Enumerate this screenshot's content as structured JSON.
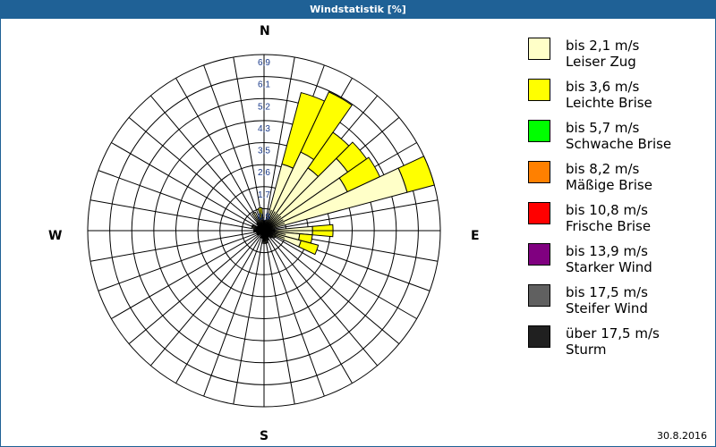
{
  "window": {
    "title": "Windstatistik [%]"
  },
  "compass": {
    "n": "N",
    "e": "E",
    "s": "S",
    "w": "W"
  },
  "date": "30.8.2016",
  "legend": [
    {
      "speed": "bis 2,1 m/s",
      "name": "Leiser Zug",
      "color": "#ffffc8"
    },
    {
      "speed": "bis 3,6 m/s",
      "name": "Leichte Brise",
      "color": "#ffff00"
    },
    {
      "speed": "bis 5,7 m/s",
      "name": "Schwache Brise",
      "color": "#00ff00"
    },
    {
      "speed": "bis 8,2 m/s",
      "name": "Mäßige Brise",
      "color": "#ff8000"
    },
    {
      "speed": "bis 10,8 m/s",
      "name": "Frische Brise",
      "color": "#ff0000"
    },
    {
      "speed": "bis 13,9 m/s",
      "name": "Starker Wind",
      "color": "#800080"
    },
    {
      "speed": "bis 17,5 m/s",
      "name": "Steifer Wind",
      "color": "#606060"
    },
    {
      "speed": "über 17,5 m/s",
      "name": "Sturm",
      "color": "#202020"
    }
  ],
  "chart_data": {
    "type": "polar-bar",
    "title": "Windstatistik [%]",
    "radial_ticks": [
      "0,9",
      "1,7",
      "2,6",
      "3,5",
      "4,3",
      "5,2",
      "6,1",
      "6,9"
    ],
    "radial_max": 6.9,
    "sector_deg": 10,
    "series_names": [
      "bis 2,1 m/s",
      "bis 3,6 m/s"
    ],
    "sectors": [
      {
        "dir": 0,
        "values": [
          0.3,
          0.1
        ]
      },
      {
        "dir": 10,
        "values": [
          0.2,
          0.0
        ]
      },
      {
        "dir": 20,
        "values": [
          2.7,
          2.9
        ]
      },
      {
        "dir": 30,
        "values": [
          3.4,
          2.6
        ]
      },
      {
        "dir": 40,
        "values": [
          3.0,
          1.7
        ]
      },
      {
        "dir": 50,
        "values": [
          4.0,
          0.9
        ]
      },
      {
        "dir": 60,
        "values": [
          3.6,
          1.4
        ]
      },
      {
        "dir": 70,
        "values": [
          5.8,
          1.1
        ]
      },
      {
        "dir": 80,
        "values": [
          0.0,
          0.0
        ]
      },
      {
        "dir": 90,
        "values": [
          1.9,
          0.8
        ]
      },
      {
        "dir": 100,
        "values": [
          1.4,
          0.5
        ]
      },
      {
        "dir": 110,
        "values": [
          1.5,
          0.7
        ]
      },
      {
        "dir": 120,
        "values": [
          0.5,
          0.0
        ]
      },
      {
        "dir": 130,
        "values": [
          0.4,
          0.0
        ]
      },
      {
        "dir": 140,
        "values": [
          0.3,
          0.0
        ]
      },
      {
        "dir": 150,
        "values": [
          0.3,
          0.0
        ]
      },
      {
        "dir": 160,
        "values": [
          0.4,
          0.0
        ]
      },
      {
        "dir": 170,
        "values": [
          0.5,
          0.0
        ]
      },
      {
        "dir": 180,
        "values": [
          0.5,
          0.0
        ]
      },
      {
        "dir": 190,
        "values": [
          0.3,
          0.0
        ]
      },
      {
        "dir": 200,
        "values": [
          0.3,
          0.0
        ]
      },
      {
        "dir": 210,
        "values": [
          0.2,
          0.0
        ]
      },
      {
        "dir": 220,
        "values": [
          0.2,
          0.0
        ]
      },
      {
        "dir": 230,
        "values": [
          0.2,
          0.0
        ]
      },
      {
        "dir": 240,
        "values": [
          0.3,
          0.0
        ]
      },
      {
        "dir": 250,
        "values": [
          0.2,
          0.0
        ]
      },
      {
        "dir": 260,
        "values": [
          0.3,
          0.0
        ]
      },
      {
        "dir": 270,
        "values": [
          0.4,
          0.0
        ]
      },
      {
        "dir": 280,
        "values": [
          0.2,
          0.0
        ]
      },
      {
        "dir": 290,
        "values": [
          0.5,
          0.0
        ]
      },
      {
        "dir": 300,
        "values": [
          0.3,
          0.0
        ]
      },
      {
        "dir": 310,
        "values": [
          0.3,
          0.0
        ]
      },
      {
        "dir": 320,
        "values": [
          0.4,
          0.0
        ]
      },
      {
        "dir": 330,
        "values": [
          0.8,
          0.0
        ]
      },
      {
        "dir": 340,
        "values": [
          0.3,
          0.0
        ]
      },
      {
        "dir": 350,
        "values": [
          0.5,
          0.4
        ]
      }
    ],
    "legend_position": "right"
  }
}
